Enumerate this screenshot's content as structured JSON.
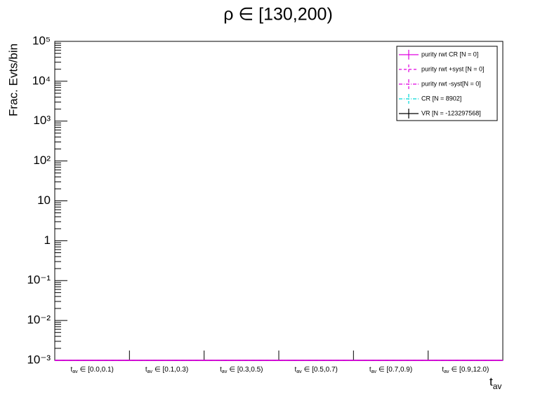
{
  "chart_data": {
    "type": "line",
    "title": "ρ ∈ [130,200)",
    "y_label": "Frac. Evts/bin",
    "x_label": {
      "base": "t",
      "subscript": "av"
    },
    "categories": [
      "∈ [0.0,0.1)",
      "∈ [0.1,0.3)",
      "∈ [0.3,0.5)",
      "∈ [0.5,0.7)",
      "∈ [0.7,0.9)",
      "∈ [0.9,12.0)"
    ],
    "log_y": true,
    "ylim": [
      0.001,
      100000
    ],
    "yticks": [
      {
        "value": 0.001,
        "label": "10⁻³"
      },
      {
        "value": 0.01,
        "label": "10⁻²"
      },
      {
        "value": 0.1,
        "label": "10⁻¹"
      },
      1,
      10,
      {
        "value": 100,
        "label": "10²"
      },
      {
        "value": 1000,
        "label": "10³"
      },
      {
        "value": 10000,
        "label": "10⁴"
      },
      {
        "value": 100000,
        "label": "10⁵"
      }
    ],
    "legend": "upper right",
    "series": [
      {
        "name": "CR [N = 8902]",
        "color": "#00d8d8",
        "linestyle": "dashdot",
        "values": [
          0,
          0,
          0,
          0,
          0,
          0
        ]
      },
      {
        "name": "VR [N = -123297568]",
        "color": "#000000",
        "linestyle": "solid",
        "values": [
          0,
          0,
          0,
          0,
          0,
          0
        ]
      },
      {
        "name": "purity rwt +syst [N = 0]",
        "color": "#e000e0",
        "linestyle": "dashed",
        "values": [
          0,
          0,
          0,
          0,
          0,
          0
        ]
      },
      {
        "name": "purity rwt -syst[N = 0]",
        "color": "#e000e0",
        "linestyle": "dashdot",
        "values": [
          0,
          0,
          0,
          0,
          0,
          0
        ]
      },
      {
        "name": "purity rwt CR [N = 0]",
        "color": "#e000e0",
        "linestyle": "solid",
        "values": [
          0,
          0,
          0,
          0,
          0,
          0
        ]
      }
    ],
    "legend_order": [
      4,
      2,
      3,
      0,
      1
    ]
  }
}
